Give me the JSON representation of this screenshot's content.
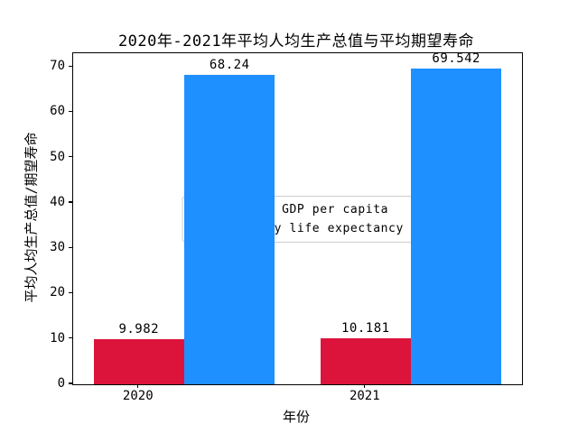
{
  "chart_data": {
    "type": "bar",
    "title": "2020年-2021年平均人均生产总值与平均期望寿命",
    "xlabel": "年份",
    "ylabel": "平均人均生产总值/期望寿命",
    "categories": [
      "2020",
      "2021"
    ],
    "series": [
      {
        "name": "Logged GDP per capita",
        "color": "#DC143C",
        "values": [
          9.982,
          10.181
        ],
        "value_labels": [
          "9.982",
          "10.181"
        ]
      },
      {
        "name": "Healthy life expectancy",
        "color": "#1E90FF",
        "values": [
          68.24,
          69.542
        ],
        "value_labels": [
          "68.24",
          "69.542"
        ]
      }
    ],
    "yticks": [
      "0",
      "10",
      "20",
      "30",
      "40",
      "50",
      "60",
      "70"
    ],
    "ylim": [
      0,
      73.02
    ],
    "bar_width": 0.4,
    "grid": false,
    "legend_position": "center",
    "axis_color": "#000000",
    "legend_border_color": "#CCCCCC",
    "background_color": "#FFFFFF"
  }
}
